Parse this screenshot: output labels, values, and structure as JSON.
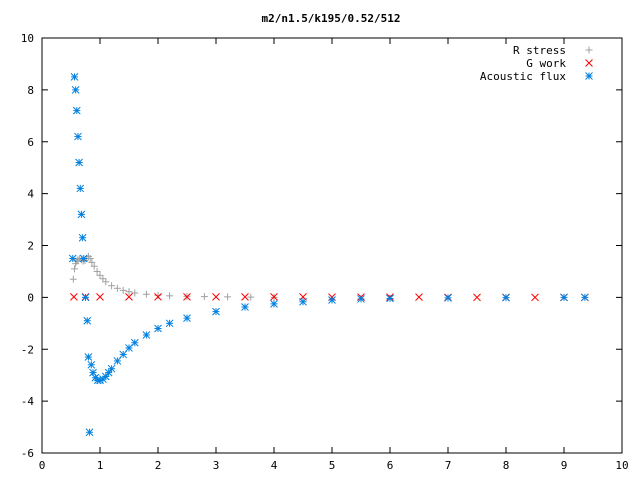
{
  "chart_data": {
    "type": "scatter",
    "title": "m2/n1.5/k195/0.52/512",
    "xlabel": "",
    "ylabel": "",
    "xlim": [
      0,
      10
    ],
    "ylim": [
      -6,
      10
    ],
    "x_ticks": [
      "0",
      "1",
      "2",
      "3",
      "4",
      "5",
      "6",
      "7",
      "8",
      "9",
      "10"
    ],
    "y_ticks": [
      "-6",
      "-4",
      "-2",
      "0",
      "2",
      "4",
      "6",
      "8",
      "10"
    ],
    "grid": false,
    "legend_position": "top-right",
    "series": [
      {
        "name": "R stress",
        "marker": "plus",
        "color": "#a0a0a0",
        "x": [
          0.54,
          0.56,
          0.58,
          0.6,
          0.62,
          0.65,
          0.68,
          0.71,
          0.74,
          0.77,
          0.8,
          0.83,
          0.86,
          0.9,
          0.95,
          1.0,
          1.05,
          1.1,
          1.2,
          1.3,
          1.4,
          1.5,
          1.6,
          1.8,
          2.0,
          2.2,
          2.5,
          2.8,
          3.2,
          3.6,
          4.0
        ],
        "y": [
          0.7,
          1.1,
          1.3,
          1.4,
          1.45,
          1.5,
          1.45,
          1.4,
          1.42,
          1.5,
          1.58,
          1.5,
          1.35,
          1.2,
          1.0,
          0.85,
          0.72,
          0.6,
          0.45,
          0.35,
          0.27,
          0.22,
          0.17,
          0.12,
          0.08,
          0.06,
          0.04,
          0.03,
          0.02,
          0.01,
          0.0
        ]
      },
      {
        "name": "G work",
        "marker": "cross",
        "color": "#ff0000",
        "x": [
          0.55,
          0.75,
          1.0,
          1.5,
          2.0,
          2.5,
          3.0,
          3.5,
          4.0,
          4.5,
          5.0,
          5.5,
          6.0,
          6.5,
          7.0,
          7.5,
          8.0,
          8.5,
          9.0,
          9.36
        ],
        "y": [
          0.02,
          0.02,
          0.02,
          0.02,
          0.02,
          0.02,
          0.02,
          0.02,
          0.02,
          0.02,
          0.01,
          0.01,
          0.01,
          0.01,
          0.0,
          0.0,
          0.0,
          0.0,
          0.0,
          0.0
        ]
      },
      {
        "name": "Acoustic flux",
        "marker": "star",
        "color": "#0080e0",
        "x": [
          0.53,
          0.56,
          0.58,
          0.6,
          0.62,
          0.64,
          0.66,
          0.68,
          0.7,
          0.72,
          0.75,
          0.78,
          0.8,
          0.82,
          0.85,
          0.88,
          0.92,
          0.96,
          1.0,
          1.05,
          1.1,
          1.15,
          1.2,
          1.3,
          1.4,
          1.5,
          1.6,
          1.8,
          2.0,
          2.2,
          2.5,
          3.0,
          3.5,
          4.0,
          4.5,
          5.0,
          5.5,
          6.0,
          7.0,
          8.0,
          9.0,
          9.36
        ],
        "y": [
          1.5,
          8.5,
          8.0,
          7.2,
          6.2,
          5.2,
          4.2,
          3.2,
          2.3,
          1.5,
          0.0,
          -0.9,
          -2.3,
          -5.2,
          -2.6,
          -2.9,
          -3.1,
          -3.2,
          -3.2,
          -3.15,
          -3.05,
          -2.9,
          -2.75,
          -2.45,
          -2.2,
          -1.95,
          -1.75,
          -1.45,
          -1.2,
          -1.0,
          -0.8,
          -0.55,
          -0.37,
          -0.25,
          -0.17,
          -0.1,
          -0.06,
          -0.04,
          -0.02,
          -0.01,
          0.0,
          0.0
        ]
      }
    ]
  }
}
